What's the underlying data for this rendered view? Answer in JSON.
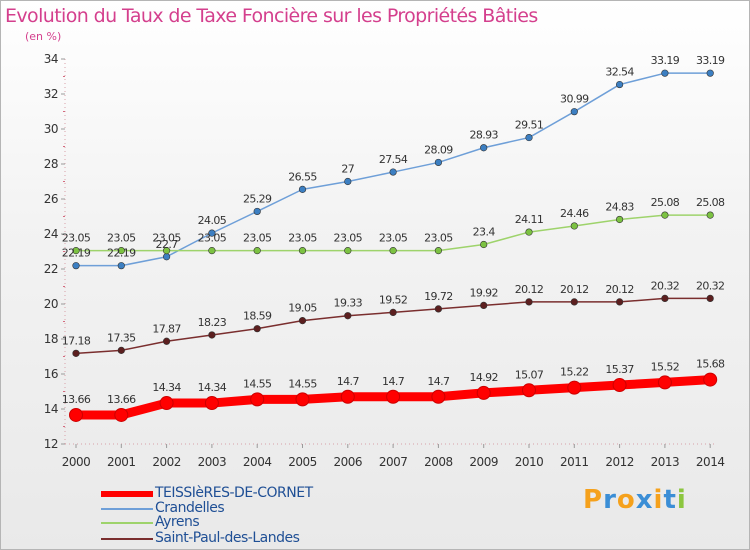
{
  "chart_data": {
    "type": "line",
    "title": "Evolution du Taux de Taxe Foncière sur les Propriétés Bâties",
    "unit_label": "(en %)",
    "x": [
      "2000",
      "2001",
      "2002",
      "2003",
      "2004",
      "2005",
      "2006",
      "2007",
      "2008",
      "2009",
      "2010",
      "2011",
      "2012",
      "2013",
      "2014"
    ],
    "ylim": [
      12,
      34
    ],
    "yticks": [
      12,
      14,
      16,
      18,
      20,
      22,
      24,
      26,
      28,
      30,
      32,
      34
    ],
    "grid": false,
    "legend_position": "bottom-left",
    "series": [
      {
        "name": "TEISSIèRES-DE-CORNET",
        "color": "#ff0000",
        "marker_color": "#ff0000",
        "values": [
          13.66,
          13.66,
          14.34,
          14.34,
          14.55,
          14.55,
          14.7,
          14.7,
          14.7,
          14.92,
          15.07,
          15.22,
          15.37,
          15.52,
          15.68
        ],
        "labels": [
          "13.66",
          "13.66",
          "14.34",
          "14.34",
          "14.55",
          "14.55",
          "14.7",
          "14.7",
          "14.7",
          "14.92",
          "15.07",
          "15.22",
          "15.37",
          "15.52",
          "15.68"
        ]
      },
      {
        "name": "Crandelles",
        "color": "#6e9fd8",
        "marker_color": "#3c7fc2",
        "values": [
          22.19,
          22.19,
          22.7,
          24.05,
          25.29,
          26.55,
          27,
          27.54,
          28.09,
          28.93,
          29.51,
          30.99,
          32.54,
          33.19,
          33.19
        ],
        "labels": [
          "22.19",
          "22.19",
          "22.7",
          "24.05",
          "25.29",
          "26.55",
          "27",
          "27.54",
          "28.09",
          "28.93",
          "29.51",
          "30.99",
          "32.54",
          "33.19",
          "33.19"
        ]
      },
      {
        "name": "Ayrens",
        "color": "#9ed36b",
        "marker_color": "#7cc242",
        "values": [
          23.05,
          23.05,
          23.05,
          23.05,
          23.05,
          23.05,
          23.05,
          23.05,
          23.05,
          23.4,
          24.11,
          24.46,
          24.83,
          25.08,
          25.08
        ],
        "labels": [
          "23.05",
          "23.05",
          "23.05",
          "23.05",
          "23.05",
          "23.05",
          "23.05",
          "23.05",
          "23.05",
          "23.4",
          "24.11",
          "24.46",
          "24.83",
          "25.08",
          "25.08"
        ]
      },
      {
        "name": "Saint-Paul-des-Landes",
        "color": "#7a2e2e",
        "marker_color": "#5c1f1f",
        "values": [
          17.18,
          17.35,
          17.87,
          18.23,
          18.59,
          19.05,
          19.33,
          19.52,
          19.72,
          19.92,
          20.12,
          20.12,
          20.12,
          20.32,
          20.32
        ],
        "labels": [
          "17.18",
          "17.35",
          "17.87",
          "18.23",
          "18.59",
          "19.05",
          "19.33",
          "19.52",
          "19.72",
          "19.92",
          "20.12",
          "20.12",
          "20.12",
          "20.32",
          "20.32"
        ]
      }
    ]
  },
  "legend": {
    "items": [
      "TEISSIèRES-DE-CORNET",
      "Crandelles",
      "Ayrens",
      "Saint-Paul-des-Landes"
    ]
  },
  "logo": {
    "letters": [
      "P",
      "r",
      "o",
      "x",
      "i",
      "t",
      "i"
    ],
    "colors": [
      "#f5a11c",
      "#3b8ed6",
      "#f5a11c",
      "#3b8ed6",
      "#f5a11c",
      "#3b8ed6",
      "#8cc63f"
    ]
  }
}
